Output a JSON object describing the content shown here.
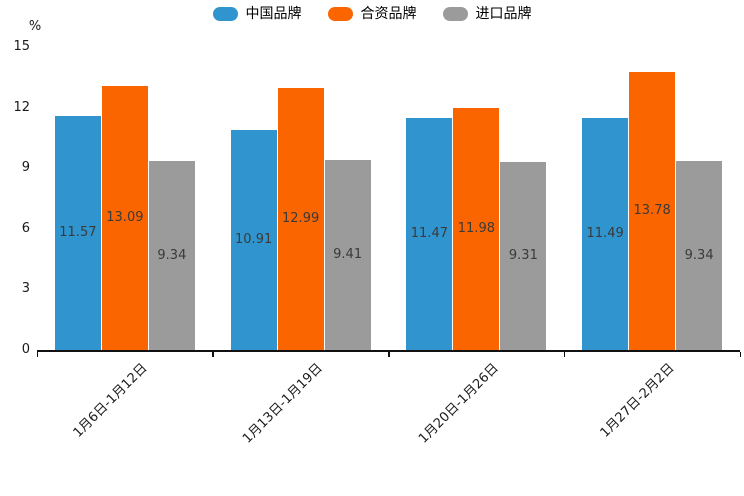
{
  "chart_data": {
    "type": "bar",
    "title": "",
    "ylabel": "%",
    "xlabel": "",
    "categories": [
      "1月6日-1月12日",
      "1月13日-1月19日",
      "1月20日-1月26日",
      "1月27日-2月2日"
    ],
    "series": [
      {
        "name": "中国品牌",
        "color": "#3095CF",
        "values": [
          11.57,
          10.91,
          11.47,
          11.49
        ]
      },
      {
        "name": "合资品牌",
        "color": "#FB6500",
        "values": [
          13.09,
          12.99,
          11.98,
          13.78
        ]
      },
      {
        "name": "进口品牌",
        "color": "#9B9B9B",
        "values": [
          9.34,
          9.41,
          9.31,
          9.34
        ]
      }
    ],
    "yticks": [
      0,
      3,
      6,
      9,
      12,
      15
    ],
    "ylim": [
      0,
      15
    ],
    "grid": false,
    "legend_position": "top-center",
    "value_labels": true,
    "x_label_rotation_deg": 45
  },
  "style": {
    "axis_color": "#111111",
    "tick_text_color": "#1a1a1a",
    "bar_label_color": "#3a3a3a",
    "background": "#ffffff"
  }
}
